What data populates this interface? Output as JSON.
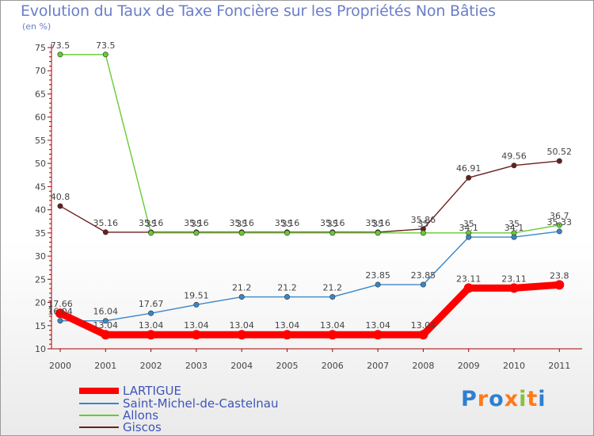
{
  "chart_data": {
    "type": "line",
    "title": "Evolution du Taux de Taxe Foncière sur les Propriétés Non Bâties",
    "ylabel": "(en %)",
    "xlabel": "",
    "ylim": [
      10,
      75
    ],
    "yticks": [
      10,
      15,
      20,
      25,
      30,
      35,
      40,
      45,
      50,
      55,
      60,
      65,
      70,
      75
    ],
    "categories": [
      "2000",
      "2001",
      "2002",
      "2003",
      "2004",
      "2005",
      "2006",
      "2007",
      "2008",
      "2009",
      "2010",
      "2011"
    ],
    "series": [
      {
        "name": "LARTIGUE",
        "color": "#ff0000",
        "values": [
          17.66,
          13.04,
          13.04,
          13.04,
          13.04,
          13.04,
          13.04,
          13.04,
          13.04,
          23.11,
          23.11,
          23.8
        ],
        "labels": [
          "17.66",
          "13.04",
          "13.04",
          "13.04",
          "13.04",
          "13.04",
          "13.04",
          "13.04",
          "13.04",
          "23.11",
          "23.11",
          "23.8"
        ]
      },
      {
        "name": "Saint-Michel-de-Castelnau",
        "color": "#3a86c8",
        "values": [
          16.04,
          16.04,
          17.67,
          19.51,
          21.2,
          21.2,
          21.2,
          23.85,
          23.85,
          34.1,
          34.1,
          35.33
        ],
        "labels": [
          "16.04",
          "16.04",
          "17.67",
          "19.51",
          "21.2",
          "21.2",
          "21.2",
          "23.85",
          "23.85",
          "34.1",
          "34.1",
          "35.33"
        ]
      },
      {
        "name": "Allons",
        "color": "#66cc33",
        "values": [
          73.5,
          73.5,
          35,
          35,
          35,
          35,
          35,
          35,
          35,
          35,
          35,
          36.7
        ],
        "labels": [
          "73.5",
          "73.5",
          "35",
          "35",
          "35",
          "35",
          "35",
          "35",
          "35",
          "35",
          "35",
          "36.7"
        ]
      },
      {
        "name": "Giscos",
        "color": "#6b1e1e",
        "values": [
          40.8,
          35.16,
          35.16,
          35.16,
          35.16,
          35.16,
          35.16,
          35.16,
          35.86,
          46.91,
          49.56,
          50.52
        ],
        "labels": [
          "40.8",
          "35.16",
          "35.16",
          "35.16",
          "35.16",
          "35.16",
          "35.16",
          "35.16",
          "35.86",
          "46.91",
          "49.56",
          "50.52"
        ]
      }
    ],
    "legend_position": "bottom-left"
  },
  "branding": {
    "logo_text": "Proxiti",
    "letter_colors": [
      "#2f7fd0",
      "#ff7a1a",
      "#2f7fd0",
      "#ff7a1a",
      "#88c03a",
      "#ff7a1a",
      "#2f7fd0"
    ]
  }
}
